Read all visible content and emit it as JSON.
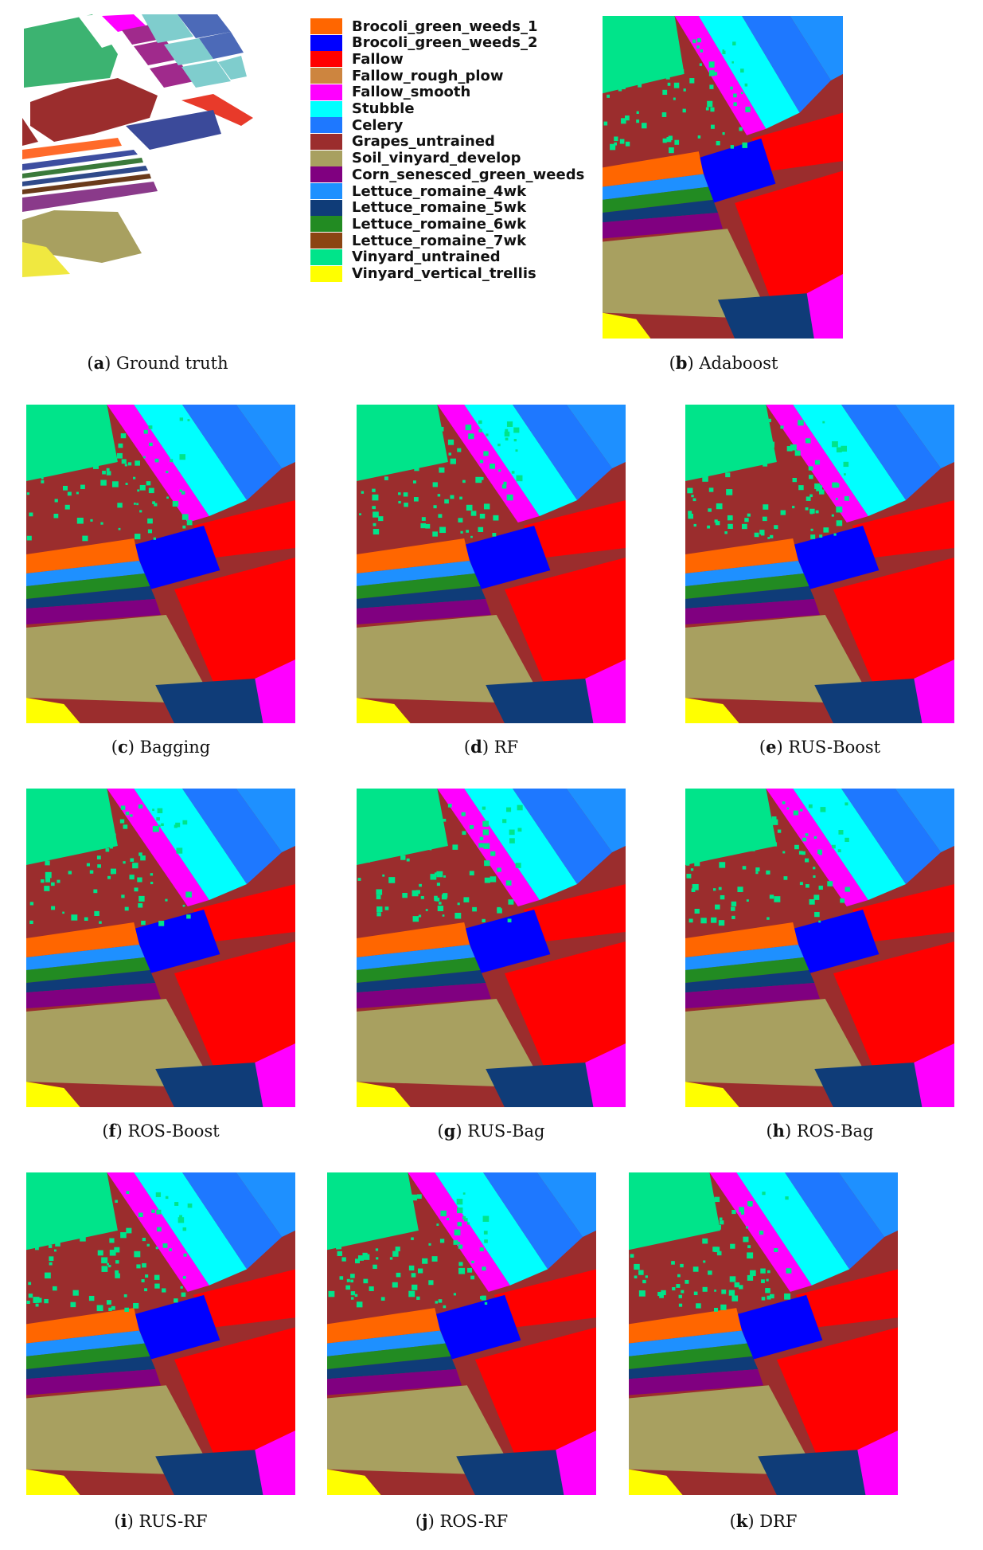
{
  "legend": [
    {
      "label": "Brocoli_green_weeds_1",
      "color": "#ff6600"
    },
    {
      "label": "Brocoli_green_weeds_2",
      "color": "#0000ff"
    },
    {
      "label": "Fallow",
      "color": "#ff0000"
    },
    {
      "label": "Fallow_rough_plow",
      "color": "#cd853f"
    },
    {
      "label": "Fallow_smooth",
      "color": "#ff00ff"
    },
    {
      "label": "Stubble",
      "color": "#00ffff"
    },
    {
      "label": "Celery",
      "color": "#1e78ff"
    },
    {
      "label": "Grapes_untrained",
      "color": "#9b2d2d"
    },
    {
      "label": "Soil_vinyard_develop",
      "color": "#a8a060"
    },
    {
      "label": "Corn_senesced_green_weeds",
      "color": "#800080"
    },
    {
      "label": "Lettuce_romaine_4wk",
      "color": "#1e90ff"
    },
    {
      "label": "Lettuce_romaine_5wk",
      "color": "#0f3c78"
    },
    {
      "label": "Lettuce_romaine_6wk",
      "color": "#228b22"
    },
    {
      "label": "Lettuce_romaine_7wk",
      "color": "#8b4513"
    },
    {
      "label": "Vinyard_untrained",
      "color": "#00e48a"
    },
    {
      "label": "Vinyard_vertical_trellis",
      "color": "#ffff00"
    }
  ],
  "panels": [
    {
      "letter": "a",
      "name": "Ground truth"
    },
    {
      "letter": "b",
      "name": "Adaboost"
    },
    {
      "letter": "c",
      "name": "Bagging"
    },
    {
      "letter": "d",
      "name": "RF"
    },
    {
      "letter": "e",
      "name": "RUS-Boost"
    },
    {
      "letter": "f",
      "name": "ROS-Boost"
    },
    {
      "letter": "g",
      "name": "RUS-Bag"
    },
    {
      "letter": "h",
      "name": "ROS-Bag"
    },
    {
      "letter": "i",
      "name": "RUS-RF"
    },
    {
      "letter": "j",
      "name": "ROS-RF"
    },
    {
      "letter": "k",
      "name": "DRF"
    }
  ]
}
